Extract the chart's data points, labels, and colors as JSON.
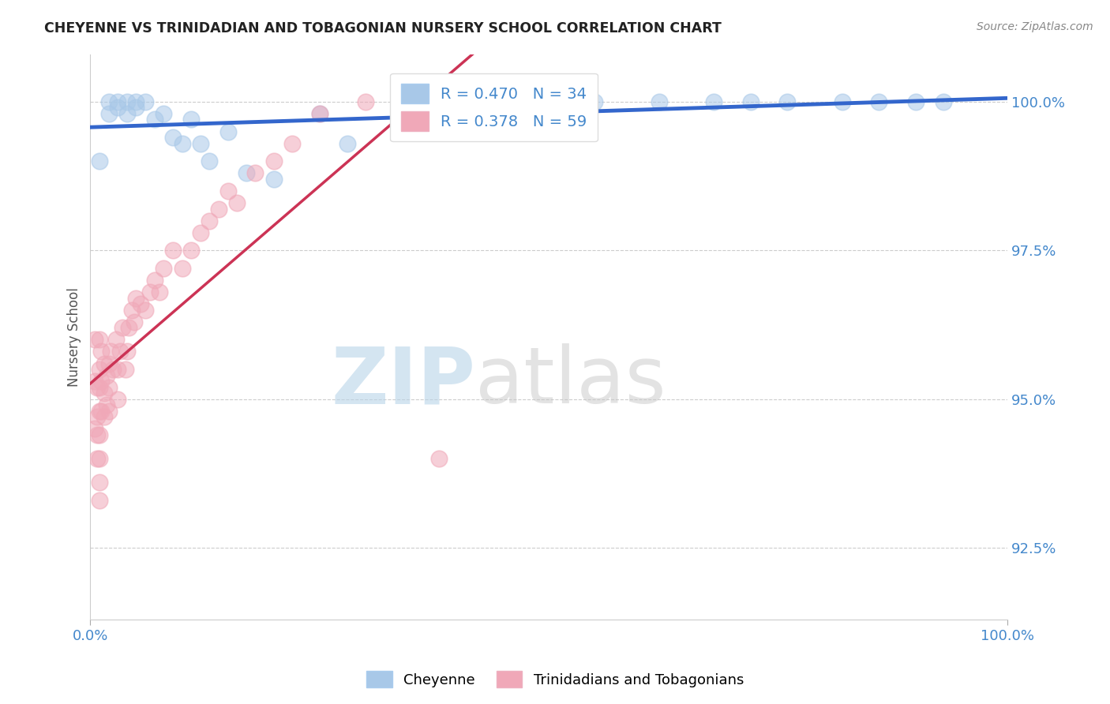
{
  "title": "CHEYENNE VS TRINIDADIAN AND TOBAGONIAN NURSERY SCHOOL CORRELATION CHART",
  "source_text": "Source: ZipAtlas.com",
  "ylabel": "Nursery School",
  "x_min": 0.0,
  "x_max": 1.0,
  "y_min": 0.913,
  "y_max": 1.008,
  "yticks": [
    1.0,
    0.975,
    0.95,
    0.925
  ],
  "ytick_labels": [
    "100.0%",
    "97.5%",
    "95.0%",
    "92.5%"
  ],
  "xticks": [
    0.0,
    1.0
  ],
  "xtick_labels": [
    "0.0%",
    "100.0%"
  ],
  "blue_color": "#a8c8e8",
  "pink_color": "#f0a8b8",
  "blue_line_color": "#3366cc",
  "pink_line_color": "#cc3355",
  "R_blue": 0.47,
  "N_blue": 34,
  "R_pink": 0.378,
  "N_pink": 59,
  "watermark_zip": "ZIP",
  "watermark_atlas": "atlas",
  "legend_label_blue": "Cheyenne",
  "legend_label_pink": "Trinidadians and Tobagonians",
  "blue_scatter_x": [
    0.01,
    0.02,
    0.02,
    0.03,
    0.03,
    0.04,
    0.04,
    0.05,
    0.05,
    0.06,
    0.07,
    0.08,
    0.09,
    0.1,
    0.11,
    0.12,
    0.13,
    0.15,
    0.17,
    0.2,
    0.25,
    0.28,
    0.35,
    0.42,
    0.5,
    0.55,
    0.62,
    0.68,
    0.72,
    0.76,
    0.82,
    0.86,
    0.9,
    0.93
  ],
  "blue_scatter_y": [
    0.99,
    1.0,
    0.998,
    1.0,
    0.999,
    1.0,
    0.998,
    1.0,
    0.999,
    1.0,
    0.997,
    0.998,
    0.994,
    0.993,
    0.997,
    0.993,
    0.99,
    0.995,
    0.988,
    0.987,
    0.998,
    0.993,
    1.0,
    0.997,
    1.0,
    1.0,
    1.0,
    1.0,
    1.0,
    1.0,
    1.0,
    1.0,
    1.0,
    1.0
  ],
  "pink_scatter_x": [
    0.005,
    0.005,
    0.005,
    0.007,
    0.007,
    0.007,
    0.007,
    0.01,
    0.01,
    0.01,
    0.01,
    0.01,
    0.01,
    0.01,
    0.01,
    0.012,
    0.012,
    0.012,
    0.015,
    0.015,
    0.015,
    0.018,
    0.018,
    0.02,
    0.02,
    0.02,
    0.022,
    0.025,
    0.028,
    0.03,
    0.03,
    0.032,
    0.035,
    0.038,
    0.04,
    0.042,
    0.045,
    0.048,
    0.05,
    0.055,
    0.06,
    0.065,
    0.07,
    0.075,
    0.08,
    0.09,
    0.1,
    0.11,
    0.12,
    0.13,
    0.14,
    0.15,
    0.16,
    0.18,
    0.2,
    0.22,
    0.25,
    0.3,
    0.38
  ],
  "pink_scatter_y": [
    0.96,
    0.953,
    0.945,
    0.952,
    0.947,
    0.944,
    0.94,
    0.96,
    0.955,
    0.952,
    0.948,
    0.944,
    0.94,
    0.936,
    0.933,
    0.958,
    0.953,
    0.948,
    0.956,
    0.951,
    0.947,
    0.954,
    0.949,
    0.956,
    0.952,
    0.948,
    0.958,
    0.955,
    0.96,
    0.955,
    0.95,
    0.958,
    0.962,
    0.955,
    0.958,
    0.962,
    0.965,
    0.963,
    0.967,
    0.966,
    0.965,
    0.968,
    0.97,
    0.968,
    0.972,
    0.975,
    0.972,
    0.975,
    0.978,
    0.98,
    0.982,
    0.985,
    0.983,
    0.988,
    0.99,
    0.993,
    0.998,
    1.0,
    0.94
  ],
  "grid_color": "#cccccc",
  "bg_color": "#ffffff",
  "tick_color": "#4488cc",
  "label_color": "#555555"
}
